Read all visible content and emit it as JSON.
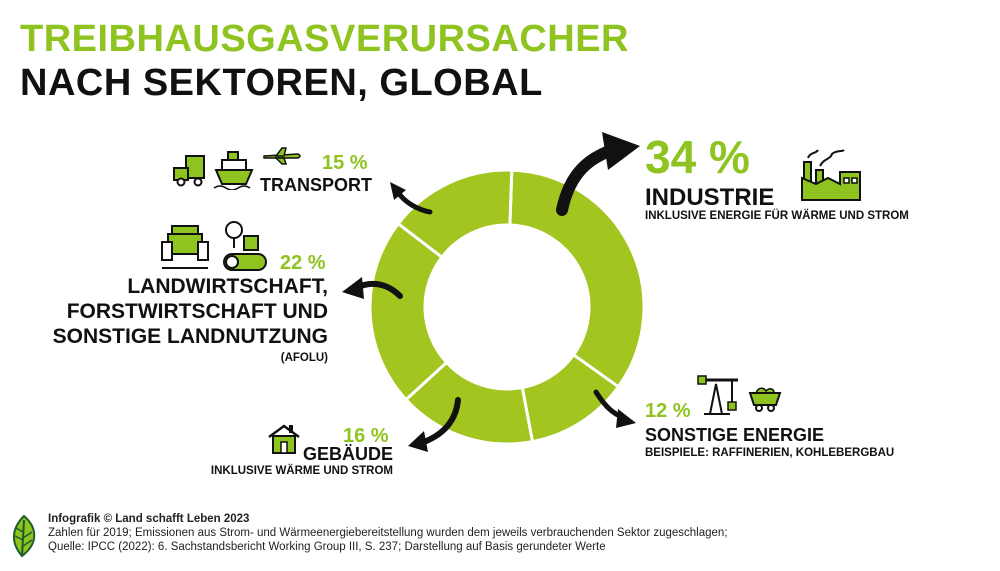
{
  "title": {
    "line1": "TREIBHAUSGASVERURSACHER",
    "line2": "NACH SEKTOREN, GLOBAL"
  },
  "colors": {
    "accent": "#8fc31f",
    "ring": "#a2c520",
    "text": "#111111"
  },
  "sectors": {
    "industrie": {
      "pct": "34 %",
      "label": "INDUSTRIE",
      "sub": "INKLUSIVE ENERGIE FÜR WÄRME UND STROM",
      "icon": "factory-icon"
    },
    "energie": {
      "pct": "12 %",
      "label": "SONSTIGE ENERGIE",
      "sub": "BEISPIELE: RAFFINERIEN, KOHLEBERGBAU",
      "icon": "oil-pump-icon"
    },
    "gebaeude": {
      "pct": "16 %",
      "label": "GEBÄUDE",
      "sub": "INKLUSIVE WÄRME UND STROM",
      "icon": "house-icon"
    },
    "afolu": {
      "pct": "22 %",
      "label1": "LANDWIRTSCHAFT,",
      "label2": "FORSTWIRTSCHAFT UND",
      "label3": "SONSTIGE LANDNUTZUNG",
      "sub": "(AFOLU)",
      "icon": "tractor-icon"
    },
    "transport": {
      "pct": "15 %",
      "label": "TRANSPORT",
      "icon": "plane-icon"
    }
  },
  "chart_data": {
    "type": "pie",
    "donut": true,
    "unit": "%",
    "categories": [
      "Industrie",
      "Sonstige Energie",
      "Gebäude",
      "Landwirtschaft, Forstwirtschaft und sonstige Landnutzung",
      "Transport"
    ],
    "values": [
      34,
      12,
      16,
      22,
      15
    ]
  },
  "footer": {
    "line1": "Infografik © Land schafft Leben 2023",
    "line2": "Zahlen für 2019; Emissionen aus Strom- und Wärmeenergiebereitstellung wurden dem jeweils verbrauchenden Sektor zugeschlagen;",
    "line3": "Quelle: IPCC (2022): 6. Sachstandsbericht Working Group III, S. 237; Darstellung auf Basis gerundeter Werte"
  }
}
